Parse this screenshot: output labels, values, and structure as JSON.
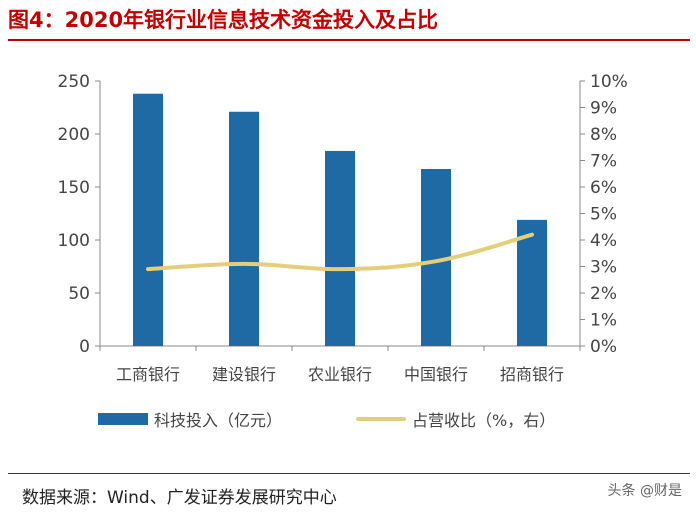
{
  "header": {
    "title": "图4：2020年银行业信息技术资金投入及占比"
  },
  "footer": {
    "source": "数据来源：Wind、广发证券发展研究中心",
    "watermark": "头条 @财是"
  },
  "colors": {
    "bar": "#1f6aa5",
    "line": "#e3cf7a",
    "axis": "#888888",
    "title": "#c00000"
  },
  "chart_data": {
    "type": "bar",
    "categories": [
      "工商银行",
      "建设银行",
      "农业银行",
      "中国银行",
      "招商银行"
    ],
    "series": [
      {
        "name": "科技投入（亿元）",
        "type": "bar",
        "axis": "left",
        "values": [
          238,
          221,
          184,
          167,
          119
        ]
      },
      {
        "name": "占营收比（%，右）",
        "type": "line",
        "axis": "right",
        "values": [
          2.9,
          3.1,
          2.9,
          3.2,
          4.2
        ]
      }
    ],
    "y_left": {
      "min": 0,
      "max": 250,
      "ticks": [
        "0",
        "50",
        "100",
        "150",
        "200",
        "250"
      ]
    },
    "y_right": {
      "min": 0,
      "max": 10,
      "ticks": [
        "0%",
        "1%",
        "2%",
        "3%",
        "4%",
        "5%",
        "6%",
        "7%",
        "8%",
        "9%",
        "10%"
      ]
    },
    "legend_position": "bottom",
    "grid": false
  }
}
